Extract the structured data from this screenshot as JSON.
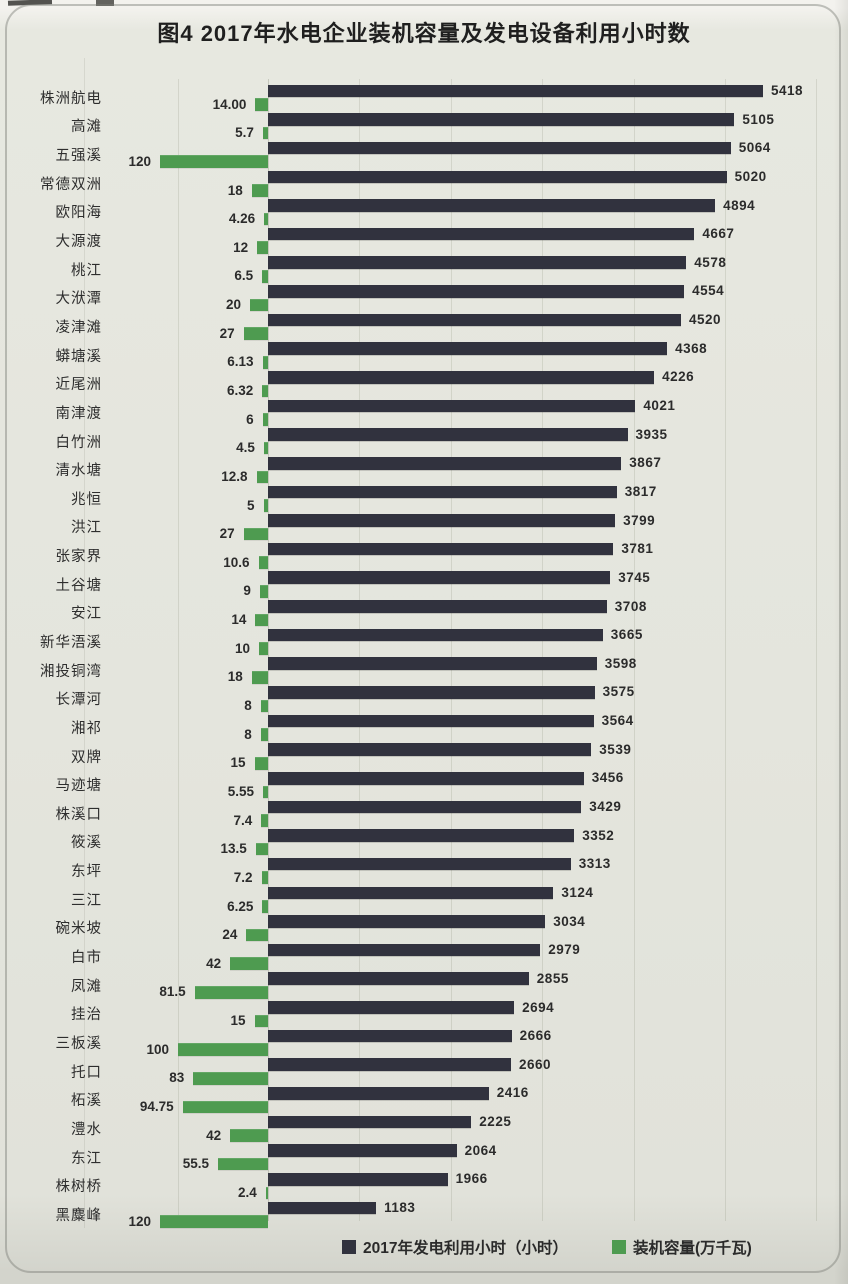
{
  "chart_data": {
    "type": "bar",
    "orientation": "horizontal",
    "title": "图4  2017年水电企业装机容量及发电设备利用小时数",
    "figure_label": "图4",
    "legend": [
      "2017年发电利用小时（小时）",
      "装机容量(万千瓦)"
    ],
    "legend_position": "bottom",
    "grid": true,
    "series": [
      {
        "name": "2017年发电利用小时（小时）",
        "color": "#31323e",
        "axis_max": 5418
      },
      {
        "name": "装机容量(万千瓦)",
        "color": "#4e9b50",
        "axis_max": 120,
        "direction": "left"
      }
    ],
    "categories": [
      "株洲航电",
      "高滩",
      "五强溪",
      "常德双洲",
      "欧阳海",
      "大源渡",
      "桃江",
      "大洑潭",
      "凌津滩",
      "蟒塘溪",
      "近尾洲",
      "南津渡",
      "白竹洲",
      "清水塘",
      "兆恒",
      "洪江",
      "张家界",
      "土谷塘",
      "安江",
      "新华浯溪",
      "湘投铜湾",
      "长潭河",
      "湘祁",
      "双牌",
      "马迹塘",
      "株溪口",
      "筱溪",
      "东坪",
      "三江",
      "碗米坡",
      "白市",
      "凤滩",
      "挂治",
      "三板溪",
      "托口",
      "柘溪",
      "澧水",
      "东江",
      "株树桥",
      "黑麋峰"
    ],
    "hours": [
      5418,
      5105,
      5064,
      5020,
      4894,
      4667,
      4578,
      4554,
      4520,
      4368,
      4226,
      4021,
      3935,
      3867,
      3817,
      3799,
      3781,
      3745,
      3708,
      3665,
      3598,
      3575,
      3564,
      3539,
      3456,
      3429,
      3352,
      3313,
      3124,
      3034,
      2979,
      2855,
      2694,
      2666,
      2660,
      2416,
      2225,
      2064,
      1966,
      1183
    ],
    "capacity": [
      "14.00",
      "5.7",
      "120",
      "18",
      "4.26",
      "12",
      "6.5",
      "20",
      "27",
      "6.13",
      "6.32",
      "6",
      "4.5",
      "12.8",
      "5",
      "27",
      "10.6",
      "9",
      "14",
      "10",
      "18",
      "8",
      "8",
      "15",
      "5.55",
      "7.4",
      "13.5",
      "7.2",
      "6.25",
      "24",
      "42",
      "81.5",
      "15",
      "100",
      "83",
      "94.75",
      "42",
      "55.5",
      "2.4",
      "120"
    ]
  },
  "colors": {
    "hours_bar": "#31323e",
    "capacity_bar": "#4e9b50",
    "paper": "#e4e5dd"
  }
}
